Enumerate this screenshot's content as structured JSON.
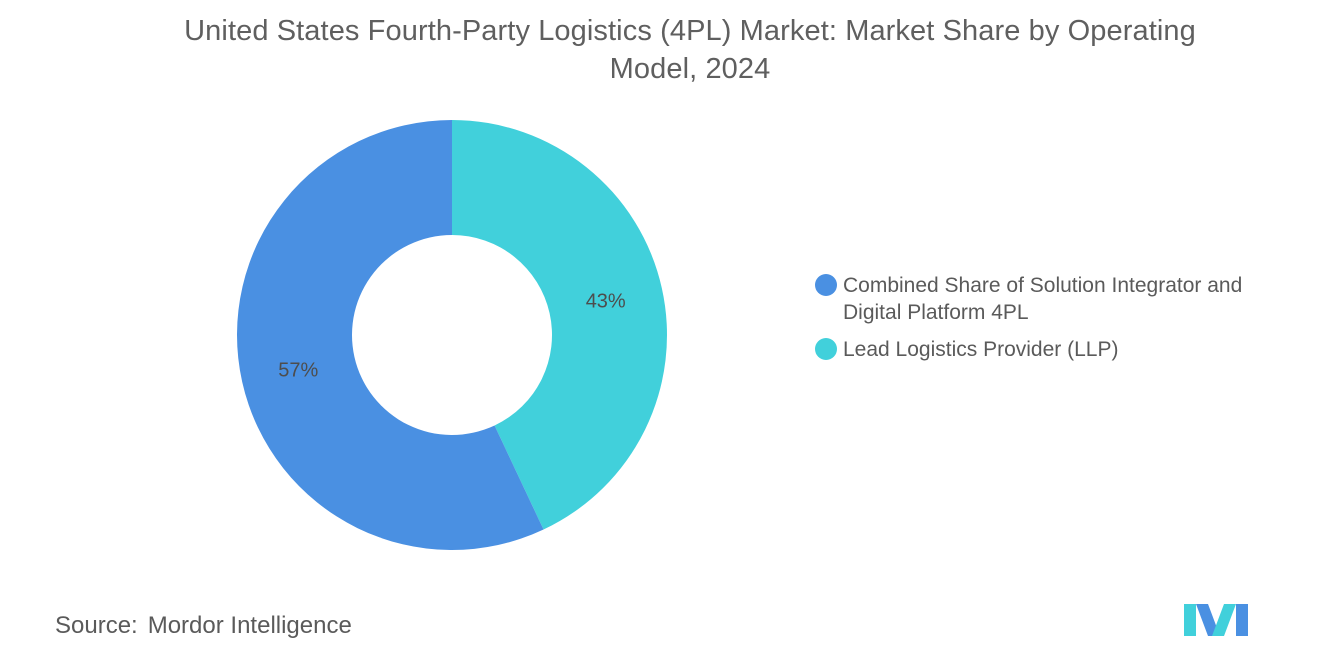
{
  "title": {
    "line1": "United States Fourth-Party Logistics (4PL) Market: Market Share by Operating",
    "line2": "Model, 2024"
  },
  "chart_data": {
    "type": "pie",
    "donut": true,
    "title": "United States Fourth-Party Logistics (4PL) Market: Market Share by Operating Model, 2024",
    "categories": [
      "Combined Share of Solution Integrator and Digital Platform 4PL",
      "Lead Logistics Provider (LLP)"
    ],
    "values": [
      57,
      43
    ],
    "labels": [
      "57%",
      "43%"
    ],
    "colors": [
      "#4a90e2",
      "#41d0db"
    ],
    "legend_position": "right"
  },
  "legend": {
    "items": [
      {
        "line1": "Combined Share of Solution Integrator and",
        "line2": "Digital Platform 4PL",
        "color": "#4a90e2"
      },
      {
        "line1": "Lead Logistics Provider (LLP)",
        "line2": "",
        "color": "#41d0db"
      }
    ]
  },
  "source": {
    "label": "Source:",
    "value": "Mordor Intelligence"
  },
  "logo": {
    "icon": "mordor-intelligence-logo",
    "colors": [
      "#4a90e2",
      "#41d0db"
    ]
  }
}
